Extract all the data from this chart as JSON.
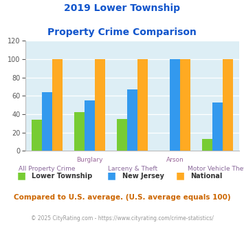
{
  "title_line1": "2019 Lower Township",
  "title_line2": "Property Crime Comparison",
  "groups": [
    "All Property Crime",
    "Burglary",
    "Larceny & Theft",
    "Arson",
    "Motor Vehicle Theft"
  ],
  "lower_township": [
    34,
    42,
    35,
    0,
    13
  ],
  "new_jersey": [
    64,
    55,
    67,
    100,
    53
  ],
  "national": [
    100,
    100,
    100,
    100,
    100
  ],
  "lower_color": "#77cc33",
  "nj_color": "#3399ee",
  "national_color": "#ffaa22",
  "plot_bg": "#ddeef5",
  "title_color": "#1155cc",
  "xlabel_top_color": "#996699",
  "xlabel_bot_color": "#886699",
  "legend_text_color": "#333333",
  "footnote_color": "#cc6600",
  "copyright_color": "#999999",
  "ylim": [
    0,
    120
  ],
  "yticks": [
    0,
    20,
    40,
    60,
    80,
    100,
    120
  ],
  "footnote": "Compared to U.S. average. (U.S. average equals 100)",
  "copyright": "© 2025 CityRating.com - https://www.cityrating.com/crime-statistics/"
}
